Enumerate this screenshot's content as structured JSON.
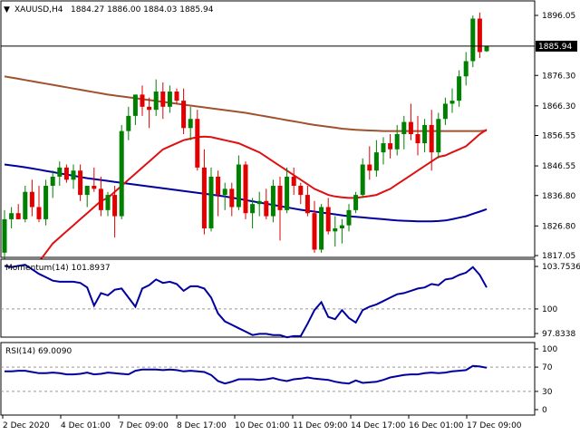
{
  "header": {
    "symbol": "XAUUSD,H4",
    "ohlc": "1884.27 1886.00 1884.03 1885.94"
  },
  "chart_data": [
    {
      "type": "candlestick",
      "title": "XAUUSD,H4",
      "ylim": [
        1815,
        1900
      ],
      "yticks": [
        "1896.05",
        "1876.30",
        "1866.30",
        "1856.55",
        "1846.55",
        "1836.80",
        "1826.80",
        "1817.05"
      ],
      "ytick_values": [
        1896.05,
        1876.3,
        1866.3,
        1856.55,
        1846.55,
        1836.8,
        1826.8,
        1817.05
      ],
      "current_price": "1885.94",
      "current_price_value": 1885.94,
      "x_labels": [
        "2 Dec 2020",
        "4 Dec 01:00",
        "7 Dec 09:00",
        "8 Dec 17:00",
        "10 Dec 01:00",
        "11 Dec 09:00",
        "14 Dec 17:00",
        "16 Dec 01:00",
        "17 Dec 09:00"
      ],
      "colors": {
        "bull": "#008000",
        "bear": "#e00000",
        "ma_fast": "#e01010",
        "ma_slow": "#a0522d",
        "ma_blue": "#0000a0"
      },
      "candles": [
        {
          "o": 1818,
          "h": 1832,
          "l": 1816,
          "c": 1829
        },
        {
          "o": 1829,
          "h": 1833,
          "l": 1826,
          "c": 1831
        },
        {
          "o": 1831,
          "h": 1834,
          "l": 1829,
          "c": 1829
        },
        {
          "o": 1829,
          "h": 1840,
          "l": 1828,
          "c": 1838
        },
        {
          "o": 1838,
          "h": 1842,
          "l": 1830,
          "c": 1833
        },
        {
          "o": 1833,
          "h": 1840,
          "l": 1828,
          "c": 1829
        },
        {
          "o": 1829,
          "h": 1842,
          "l": 1827,
          "c": 1840
        },
        {
          "o": 1840,
          "h": 1845,
          "l": 1836,
          "c": 1843
        },
        {
          "o": 1843,
          "h": 1848,
          "l": 1840,
          "c": 1846
        },
        {
          "o": 1846,
          "h": 1847,
          "l": 1841,
          "c": 1842
        },
        {
          "o": 1842,
          "h": 1847,
          "l": 1839,
          "c": 1845
        },
        {
          "o": 1845,
          "h": 1847,
          "l": 1835,
          "c": 1837
        },
        {
          "o": 1837,
          "h": 1840,
          "l": 1833,
          "c": 1840
        },
        {
          "o": 1840,
          "h": 1846,
          "l": 1838,
          "c": 1839
        },
        {
          "o": 1839,
          "h": 1843,
          "l": 1830,
          "c": 1832
        },
        {
          "o": 1832,
          "h": 1838,
          "l": 1830,
          "c": 1837
        },
        {
          "o": 1837,
          "h": 1840,
          "l": 1823,
          "c": 1830
        },
        {
          "o": 1830,
          "h": 1860,
          "l": 1829,
          "c": 1858
        },
        {
          "o": 1858,
          "h": 1866,
          "l": 1855,
          "c": 1863
        },
        {
          "o": 1863,
          "h": 1870,
          "l": 1860,
          "c": 1870
        },
        {
          "o": 1870,
          "h": 1873,
          "l": 1863,
          "c": 1866
        },
        {
          "o": 1866,
          "h": 1869,
          "l": 1859,
          "c": 1865
        },
        {
          "o": 1865,
          "h": 1875,
          "l": 1863,
          "c": 1871
        },
        {
          "o": 1871,
          "h": 1874,
          "l": 1862,
          "c": 1866
        },
        {
          "o": 1866,
          "h": 1873,
          "l": 1864,
          "c": 1871
        },
        {
          "o": 1871,
          "h": 1872,
          "l": 1867,
          "c": 1868
        },
        {
          "o": 1868,
          "h": 1872,
          "l": 1857,
          "c": 1859
        },
        {
          "o": 1859,
          "h": 1866,
          "l": 1855,
          "c": 1862
        },
        {
          "o": 1862,
          "h": 1865,
          "l": 1845,
          "c": 1846
        },
        {
          "o": 1846,
          "h": 1852,
          "l": 1824,
          "c": 1826
        },
        {
          "o": 1826,
          "h": 1846,
          "l": 1825,
          "c": 1843
        },
        {
          "o": 1843,
          "h": 1845,
          "l": 1830,
          "c": 1837
        },
        {
          "o": 1837,
          "h": 1841,
          "l": 1832,
          "c": 1839
        },
        {
          "o": 1839,
          "h": 1841,
          "l": 1830,
          "c": 1833
        },
        {
          "o": 1833,
          "h": 1850,
          "l": 1832,
          "c": 1847
        },
        {
          "o": 1847,
          "h": 1848,
          "l": 1829,
          "c": 1831
        },
        {
          "o": 1831,
          "h": 1836,
          "l": 1826,
          "c": 1834
        },
        {
          "o": 1834,
          "h": 1838,
          "l": 1830,
          "c": 1835
        },
        {
          "o": 1835,
          "h": 1839,
          "l": 1829,
          "c": 1830
        },
        {
          "o": 1830,
          "h": 1842,
          "l": 1828,
          "c": 1840
        },
        {
          "o": 1840,
          "h": 1843,
          "l": 1822,
          "c": 1832
        },
        {
          "o": 1832,
          "h": 1846,
          "l": 1831,
          "c": 1843
        },
        {
          "o": 1843,
          "h": 1846,
          "l": 1837,
          "c": 1840
        },
        {
          "o": 1840,
          "h": 1841,
          "l": 1834,
          "c": 1837
        },
        {
          "o": 1837,
          "h": 1840,
          "l": 1830,
          "c": 1831
        },
        {
          "o": 1831,
          "h": 1835,
          "l": 1818,
          "c": 1819
        },
        {
          "o": 1819,
          "h": 1834,
          "l": 1818,
          "c": 1833
        },
        {
          "o": 1833,
          "h": 1836,
          "l": 1824,
          "c": 1825
        },
        {
          "o": 1825,
          "h": 1830,
          "l": 1820,
          "c": 1826
        },
        {
          "o": 1826,
          "h": 1829,
          "l": 1821,
          "c": 1827
        },
        {
          "o": 1827,
          "h": 1834,
          "l": 1825,
          "c": 1832
        },
        {
          "o": 1832,
          "h": 1838,
          "l": 1831,
          "c": 1837
        },
        {
          "o": 1837,
          "h": 1849,
          "l": 1836,
          "c": 1847
        },
        {
          "o": 1847,
          "h": 1853,
          "l": 1842,
          "c": 1845
        },
        {
          "o": 1845,
          "h": 1855,
          "l": 1843,
          "c": 1851
        },
        {
          "o": 1851,
          "h": 1856,
          "l": 1847,
          "c": 1854
        },
        {
          "o": 1854,
          "h": 1857,
          "l": 1849,
          "c": 1852
        },
        {
          "o": 1852,
          "h": 1860,
          "l": 1850,
          "c": 1857
        },
        {
          "o": 1857,
          "h": 1863,
          "l": 1852,
          "c": 1861
        },
        {
          "o": 1861,
          "h": 1867,
          "l": 1855,
          "c": 1857
        },
        {
          "o": 1857,
          "h": 1863,
          "l": 1850,
          "c": 1854
        },
        {
          "o": 1854,
          "h": 1862,
          "l": 1851,
          "c": 1860
        },
        {
          "o": 1860,
          "h": 1865,
          "l": 1845,
          "c": 1851
        },
        {
          "o": 1851,
          "h": 1864,
          "l": 1849,
          "c": 1862
        },
        {
          "o": 1862,
          "h": 1869,
          "l": 1860,
          "c": 1867
        },
        {
          "o": 1867,
          "h": 1872,
          "l": 1864,
          "c": 1868
        },
        {
          "o": 1868,
          "h": 1878,
          "l": 1866,
          "c": 1876
        },
        {
          "o": 1876,
          "h": 1884,
          "l": 1873,
          "c": 1881
        },
        {
          "o": 1881,
          "h": 1896,
          "l": 1879,
          "c": 1895
        },
        {
          "o": 1895,
          "h": 1897,
          "l": 1882,
          "c": 1884
        },
        {
          "o": 1884.27,
          "h": 1886.0,
          "l": 1884.03,
          "c": 1885.94
        }
      ],
      "ma_slow": [
        1876,
        1875.6,
        1875.2,
        1874.8,
        1874.4,
        1874,
        1873.6,
        1873.2,
        1872.8,
        1872.4,
        1872,
        1871.6,
        1871.2,
        1870.8,
        1870.4,
        1870,
        1869.7,
        1869.4,
        1869.1,
        1868.8,
        1868.5,
        1868.2,
        1867.9,
        1867.6,
        1867.3,
        1867,
        1866.7,
        1866.4,
        1866.1,
        1865.8,
        1865.5,
        1865.2,
        1864.9,
        1864.6,
        1864.3,
        1864,
        1863.6,
        1863.2,
        1862.8,
        1862.4,
        1862,
        1861.6,
        1861.2,
        1860.8,
        1860.4,
        1860,
        1859.7,
        1859.4,
        1859.1,
        1858.8,
        1858.6,
        1858.4,
        1858.3,
        1858.2,
        1858.1,
        1858,
        1858,
        1858,
        1858,
        1858,
        1858,
        1858,
        1858,
        1858,
        1858,
        1858,
        1858,
        1858,
        1858,
        1858,
        1858.2
      ],
      "ma_fast": [
        1800,
        1803,
        1806,
        1809,
        1812,
        1815,
        1818,
        1821,
        1823,
        1825,
        1827,
        1829,
        1831,
        1833,
        1835,
        1836,
        1838,
        1840,
        1842,
        1844,
        1846,
        1848,
        1850,
        1852,
        1853,
        1854,
        1855,
        1855.5,
        1856,
        1856.2,
        1856,
        1855.5,
        1855,
        1854.5,
        1854,
        1853,
        1852,
        1851,
        1849.5,
        1848,
        1846.5,
        1845,
        1843.5,
        1842,
        1840.5,
        1839,
        1838,
        1837,
        1836.5,
        1836.2,
        1836,
        1836,
        1836.3,
        1836.6,
        1837,
        1838,
        1839,
        1840.5,
        1842,
        1843.5,
        1845,
        1846.5,
        1848,
        1849.5,
        1850,
        1851,
        1852,
        1853,
        1855,
        1857,
        1858.5
      ],
      "ma_blue": [
        1847,
        1846.7,
        1846.4,
        1846.1,
        1845.7,
        1845.3,
        1844.9,
        1844.5,
        1844.1,
        1843.7,
        1843.3,
        1842.9,
        1842.5,
        1842.2,
        1841.9,
        1841.6,
        1841.3,
        1841,
        1840.7,
        1840.4,
        1840.1,
        1839.8,
        1839.5,
        1839.2,
        1838.9,
        1838.6,
        1838.3,
        1838,
        1837.7,
        1837.4,
        1837.1,
        1836.8,
        1836.5,
        1836.1,
        1835.7,
        1835.3,
        1834.9,
        1834.5,
        1834.1,
        1833.7,
        1833.3,
        1832.9,
        1832.5,
        1832.1,
        1831.8,
        1831.5,
        1831.2,
        1830.9,
        1830.6,
        1830.3,
        1830,
        1829.8,
        1829.6,
        1829.4,
        1829.2,
        1829,
        1828.8,
        1828.6,
        1828.5,
        1828.4,
        1828.3,
        1828.3,
        1828.3,
        1828.4,
        1828.6,
        1829,
        1829.5,
        1830,
        1830.8,
        1831.5,
        1832.3
      ]
    },
    {
      "type": "line",
      "title": "Momentum(14) 101.8937",
      "ylim": [
        97.5,
        104.0
      ],
      "yticks": [
        "103.7536",
        "100",
        "97.8338"
      ],
      "ytick_values": [
        103.7536,
        100,
        97.8338
      ],
      "reference_value": 100,
      "values": [
        103.8,
        103.7,
        103.8,
        103.9,
        103.5,
        103.1,
        102.8,
        102.5,
        102.4,
        102.4,
        102.4,
        102.3,
        101.9,
        100.3,
        101.4,
        101.2,
        101.7,
        101.8,
        101.0,
        100.2,
        101.8,
        102.1,
        102.6,
        102.3,
        102.4,
        102.2,
        101.6,
        102.0,
        102.0,
        101.8,
        101.0,
        99.6,
        98.9,
        98.6,
        98.3,
        98.0,
        97.7,
        97.8,
        97.8,
        97.7,
        97.7,
        97.5,
        97.6,
        97.6,
        98.7,
        99.9,
        100.6,
        99.3,
        99.1,
        99.9,
        99.2,
        98.8,
        99.9,
        100.2,
        100.4,
        100.7,
        101.0,
        101.3,
        101.4,
        101.6,
        101.8,
        101.9,
        102.2,
        102.1,
        102.6,
        102.7,
        103.0,
        103.2,
        103.7,
        103.0,
        101.9
      ]
    },
    {
      "type": "line",
      "title": "RSI(14) 69.0090",
      "ylim": [
        0,
        100
      ],
      "yticks": [
        "100",
        "70",
        "30",
        "0"
      ],
      "ytick_values": [
        100,
        70,
        30,
        0
      ],
      "levels": [
        70,
        30
      ],
      "values": [
        63,
        63,
        64,
        64,
        62,
        60,
        60,
        61,
        60,
        58,
        58,
        59,
        61,
        58,
        59,
        61,
        60,
        59,
        58,
        64,
        66,
        66,
        66,
        65,
        66,
        65,
        63,
        64,
        63,
        62,
        57,
        47,
        43,
        46,
        50,
        50,
        50,
        49,
        50,
        52,
        49,
        47,
        50,
        51,
        53,
        51,
        50,
        49,
        46,
        44,
        43,
        48,
        44,
        45,
        46,
        49,
        53,
        55,
        57,
        58,
        58,
        60,
        61,
        60,
        61,
        63,
        64,
        65,
        72,
        71,
        69
      ]
    }
  ]
}
